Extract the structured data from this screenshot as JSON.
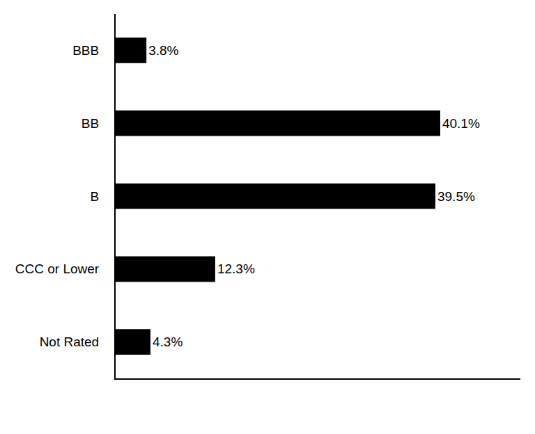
{
  "chart_data": {
    "type": "bar",
    "orientation": "horizontal",
    "categories": [
      "BBB",
      "BB",
      "B",
      "CCC or Lower",
      "Not Rated"
    ],
    "values": [
      3.8,
      40.1,
      39.5,
      12.3,
      4.3
    ],
    "value_labels": [
      "3.8%",
      "40.1%",
      "39.5%",
      "12.3%",
      "4.3%"
    ],
    "color": "#000000",
    "xlim": [
      0,
      50
    ],
    "data_labels": true,
    "tick_labels": "y",
    "grid": false
  }
}
